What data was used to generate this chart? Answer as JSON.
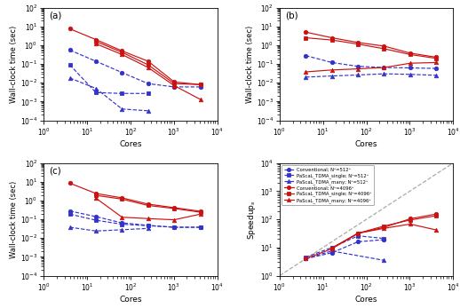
{
  "panel_a": {
    "title": "(a)",
    "ylabel": "Wall-clock time (sec)",
    "xlabel": "Cores",
    "xlim": [
      1.0,
      10000.0
    ],
    "ylim": [
      0.0001,
      100.0
    ],
    "series": [
      {
        "key": "conv_512",
        "cores": [
          4,
          16,
          64,
          256,
          1024,
          4096
        ],
        "values": [
          0.55,
          0.14,
          0.035,
          0.009,
          0.006,
          0.006
        ],
        "color": "#3333cc",
        "marker": "o",
        "linestyle": "--",
        "filled": true
      },
      {
        "key": "pascal_single_512",
        "cores": [
          4,
          16,
          64,
          256
        ],
        "values": [
          0.09,
          0.003,
          0.0027,
          0.0027
        ],
        "color": "#3333cc",
        "marker": "s",
        "linestyle": "--",
        "filled": true
      },
      {
        "key": "pascal_many_512",
        "cores": [
          4,
          16,
          64,
          256
        ],
        "values": [
          0.018,
          0.005,
          0.0004,
          0.00032
        ],
        "color": "#3333cc",
        "marker": "^",
        "linestyle": "--",
        "filled": true
      },
      {
        "key": "conv_4096",
        "cores": [
          4,
          16,
          64,
          256,
          1024,
          4096
        ],
        "values": [
          7.5,
          2.0,
          0.5,
          0.14,
          0.011,
          0.008
        ],
        "color": "#cc1111",
        "marker": "o",
        "linestyle": "-",
        "filled": true
      },
      {
        "key": "pascal_single_4096",
        "cores": [
          16,
          64,
          256,
          1024,
          4096
        ],
        "values": [
          1.6,
          0.42,
          0.09,
          0.009,
          0.008
        ],
        "color": "#cc1111",
        "marker": "s",
        "linestyle": "-",
        "filled": true
      },
      {
        "key": "pascal_many_4096",
        "cores": [
          16,
          64,
          256,
          1024,
          4096
        ],
        "values": [
          1.2,
          0.32,
          0.065,
          0.007,
          0.0013
        ],
        "color": "#cc1111",
        "marker": "^",
        "linestyle": "-",
        "filled": true
      }
    ]
  },
  "panel_b": {
    "title": "(b)",
    "ylabel": "Wall-clock time (sec)",
    "xlabel": "Cores",
    "xlim": [
      1.0,
      10000.0
    ],
    "ylim": [
      0.0001,
      100.0
    ],
    "series": [
      {
        "key": "conv_512",
        "cores": [
          4,
          16,
          64,
          256,
          1024,
          4096
        ],
        "values": [
          0.28,
          0.12,
          0.075,
          0.065,
          0.062,
          0.058
        ],
        "color": "#3333cc",
        "marker": "o",
        "linestyle": "--",
        "filled": true
      },
      {
        "key": "pascal_many_512",
        "cores": [
          4,
          16,
          64,
          256,
          1024,
          4096
        ],
        "values": [
          0.02,
          0.023,
          0.026,
          0.03,
          0.028,
          0.025
        ],
        "color": "#3333cc",
        "marker": "^",
        "linestyle": "--",
        "filled": true
      },
      {
        "key": "conv_4096",
        "cores": [
          4,
          16,
          64,
          256,
          1024,
          4096
        ],
        "values": [
          5.0,
          2.5,
          1.4,
          0.9,
          0.38,
          0.23
        ],
        "color": "#cc1111",
        "marker": "o",
        "linestyle": "-",
        "filled": true
      },
      {
        "key": "pascal_single_4096",
        "cores": [
          4,
          16,
          64,
          256,
          1024,
          4096
        ],
        "values": [
          2.5,
          1.9,
          1.15,
          0.65,
          0.32,
          0.2
        ],
        "color": "#cc1111",
        "marker": "s",
        "linestyle": "-",
        "filled": true
      },
      {
        "key": "pascal_many_4096",
        "cores": [
          4,
          16,
          64,
          256,
          1024,
          4096
        ],
        "values": [
          0.038,
          0.048,
          0.055,
          0.065,
          0.11,
          0.12
        ],
        "color": "#cc1111",
        "marker": "^",
        "linestyle": "-",
        "filled": true
      }
    ]
  },
  "panel_c": {
    "title": "(c)",
    "ylabel": "Wall-clock time (sec)",
    "xlabel": "Cores",
    "xlim": [
      1.0,
      10000.0
    ],
    "ylim": [
      0.0001,
      100.0
    ],
    "series": [
      {
        "key": "conv_512",
        "cores": [
          4,
          16,
          64,
          256,
          1024,
          4096
        ],
        "values": [
          0.28,
          0.14,
          0.065,
          0.048,
          0.038,
          0.038
        ],
        "color": "#3333cc",
        "marker": "o",
        "linestyle": "--",
        "filled": true
      },
      {
        "key": "pascal_single_512",
        "cores": [
          4,
          16,
          64,
          256,
          1024,
          4096
        ],
        "values": [
          0.19,
          0.09,
          0.055,
          0.046,
          0.038,
          0.038
        ],
        "color": "#3333cc",
        "marker": "s",
        "linestyle": "--",
        "filled": true
      },
      {
        "key": "pascal_many_512",
        "cores": [
          4,
          16,
          64,
          256
        ],
        "values": [
          0.038,
          0.024,
          0.028,
          0.033
        ],
        "color": "#3333cc",
        "marker": "^",
        "linestyle": "--",
        "filled": true
      },
      {
        "key": "conv_4096",
        "cores": [
          4,
          16,
          64,
          256,
          1024,
          4096
        ],
        "values": [
          8.5,
          2.4,
          1.4,
          0.65,
          0.42,
          0.27
        ],
        "color": "#cc1111",
        "marker": "o",
        "linestyle": "-",
        "filled": true
      },
      {
        "key": "pascal_single_4096",
        "cores": [
          16,
          64,
          256,
          1024,
          4096
        ],
        "values": [
          1.9,
          1.2,
          0.55,
          0.38,
          0.24
        ],
        "color": "#cc1111",
        "marker": "s",
        "linestyle": "-",
        "filled": true
      },
      {
        "key": "pascal_many_4096",
        "cores": [
          16,
          64,
          256,
          1024,
          4096
        ],
        "values": [
          1.35,
          0.13,
          0.11,
          0.095,
          0.19
        ],
        "color": "#cc1111",
        "marker": "^",
        "linestyle": "-",
        "filled": true
      }
    ]
  },
  "panel_d": {
    "title": "(d)",
    "ylabel": "Speedup$_s$",
    "xlabel": "Cores",
    "xlim": [
      1.0,
      10000.0
    ],
    "ylim": [
      1.0,
      10000.0
    ],
    "ideal_line": {
      "x": [
        1,
        10000
      ],
      "y": [
        1,
        10000
      ]
    },
    "series": [
      {
        "key": "conv_512",
        "cores": [
          4,
          16,
          64,
          256
        ],
        "values": [
          4.0,
          6.5,
          16,
          19
        ],
        "color": "#3333cc",
        "marker": "o",
        "linestyle": "--",
        "filled": true
      },
      {
        "key": "pascal_single_512",
        "cores": [
          4,
          16,
          64,
          256
        ],
        "values": [
          4.5,
          10,
          26,
          21
        ],
        "color": "#3333cc",
        "marker": "s",
        "linestyle": "--",
        "filled": true
      },
      {
        "key": "pascal_many_512",
        "cores": [
          4,
          16,
          256
        ],
        "values": [
          4.0,
          7.5,
          3.5
        ],
        "color": "#3333cc",
        "marker": "^",
        "linestyle": "--",
        "filled": true
      },
      {
        "key": "conv_4096",
        "cores": [
          4,
          16,
          64,
          256,
          1024,
          4096
        ],
        "values": [
          4.0,
          9.0,
          32,
          52,
          105,
          155
        ],
        "color": "#cc1111",
        "marker": "o",
        "linestyle": "-",
        "filled": true
      },
      {
        "key": "pascal_single_4096",
        "cores": [
          16,
          64,
          256,
          1024,
          4096
        ],
        "values": [
          9.5,
          32,
          58,
          95,
          135
        ],
        "color": "#cc1111",
        "marker": "s",
        "linestyle": "-",
        "filled": true
      },
      {
        "key": "pascal_many_4096",
        "cores": [
          16,
          64,
          256,
          1024,
          4096
        ],
        "values": [
          9.5,
          32,
          48,
          68,
          42
        ],
        "color": "#cc1111",
        "marker": "^",
        "linestyle": "-",
        "filled": true
      }
    ],
    "legend": [
      {
        "label": "Conventional; N³=512³",
        "color": "#3333cc",
        "marker": "o",
        "linestyle": "--"
      },
      {
        "label": "PaScaL_TDMA_single; N³=512³",
        "color": "#3333cc",
        "marker": "s",
        "linestyle": "--"
      },
      {
        "label": "PaScaL_TDMA_many; N³=512³",
        "color": "#3333cc",
        "marker": "^",
        "linestyle": "--"
      },
      {
        "label": "Conventional; N³=4096³",
        "color": "#cc1111",
        "marker": "o",
        "linestyle": "-"
      },
      {
        "label": "PaScaL_TDMA_single; N³=4096³",
        "color": "#cc1111",
        "marker": "s",
        "linestyle": "-"
      },
      {
        "label": "PaScaL_TDMA_many; N³=4096³",
        "color": "#cc1111",
        "marker": "^",
        "linestyle": "-"
      }
    ]
  }
}
